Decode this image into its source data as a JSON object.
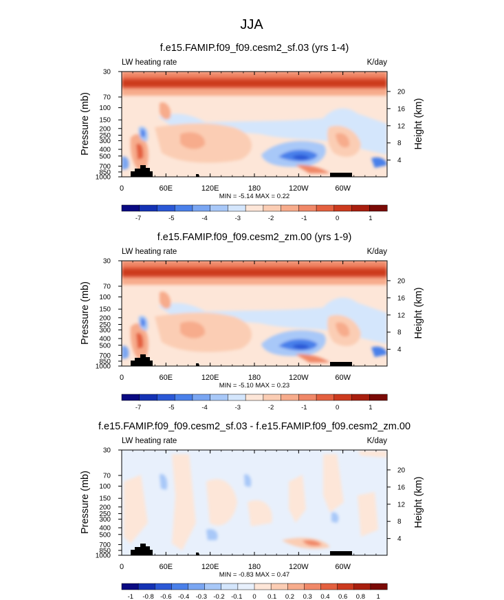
{
  "figure": {
    "title": "JJA"
  },
  "colors": {
    "background": "#ffffff",
    "topography": "#000000"
  },
  "chart_data": [
    {
      "type": "heatmap",
      "title": "f.e15.FAMIP.f09_f09.cesm2_sf.03 (yrs 1-4)",
      "left_string": "LW heating rate",
      "right_string": "K/day",
      "ylabel": "Pressure (mb)",
      "ylabel_right": "Height (km)",
      "x_ticks": [
        "0",
        "60E",
        "120E",
        "180",
        "120W",
        "60W"
      ],
      "x_tick_lon": [
        0,
        60,
        120,
        180,
        240,
        300
      ],
      "xlim": [
        0,
        360
      ],
      "y_ticks": [
        "30",
        "70",
        "100",
        "150",
        "200",
        "250",
        "300",
        "400",
        "500",
        "700",
        "850",
        "1000"
      ],
      "y_tick_values": [
        30,
        70,
        100,
        150,
        200,
        250,
        300,
        400,
        500,
        700,
        850,
        1000
      ],
      "ylim": [
        30,
        1000
      ],
      "height_ticks": [
        "20",
        "16",
        "12",
        "8",
        "4"
      ],
      "height_values": [
        20,
        16,
        12,
        8,
        4
      ],
      "min_max": "MIN =  -5.14  MAX =   0.22",
      "colorbar_labels": [
        "-7",
        "-5",
        "-4",
        "-3",
        "-2",
        "-1",
        "0",
        "1"
      ],
      "colorbar_colors": [
        "#0a0a82",
        "#1432b4",
        "#2b58d6",
        "#4a80ea",
        "#7aa6f2",
        "#a8c8f8",
        "#d4e6fc",
        "#fde6d8",
        "#fbcdb4",
        "#f7ac8c",
        "#f08868",
        "#e4603f",
        "#cc3a1e",
        "#a81e0e",
        "#7a0a06"
      ]
    },
    {
      "type": "heatmap",
      "title": "f.e15.FAMIP.f09_f09.cesm2_zm.00 (yrs 1-9)",
      "left_string": "LW heating rate",
      "right_string": "K/day",
      "ylabel": "Pressure (mb)",
      "ylabel_right": "Height (km)",
      "x_ticks": [
        "0",
        "60E",
        "120E",
        "180",
        "120W",
        "60W"
      ],
      "x_tick_lon": [
        0,
        60,
        120,
        180,
        240,
        300
      ],
      "xlim": [
        0,
        360
      ],
      "y_ticks": [
        "30",
        "70",
        "100",
        "150",
        "200",
        "250",
        "300",
        "400",
        "500",
        "700",
        "850",
        "1000"
      ],
      "y_tick_values": [
        30,
        70,
        100,
        150,
        200,
        250,
        300,
        400,
        500,
        700,
        850,
        1000
      ],
      "ylim": [
        30,
        1000
      ],
      "height_ticks": [
        "20",
        "16",
        "12",
        "8",
        "4"
      ],
      "height_values": [
        20,
        16,
        12,
        8,
        4
      ],
      "min_max": "MIN =  -5.10  MAX =   0.23",
      "colorbar_labels": [
        "-7",
        "-5",
        "-4",
        "-3",
        "-2",
        "-1",
        "0",
        "1"
      ],
      "colorbar_colors": [
        "#0a0a82",
        "#1432b4",
        "#2b58d6",
        "#4a80ea",
        "#7aa6f2",
        "#a8c8f8",
        "#d4e6fc",
        "#fde6d8",
        "#fbcdb4",
        "#f7ac8c",
        "#f08868",
        "#e4603f",
        "#cc3a1e",
        "#a81e0e",
        "#7a0a06"
      ]
    },
    {
      "type": "heatmap",
      "title": "f.e15.FAMIP.f09_f09.cesm2_sf.03 - f.e15.FAMIP.f09_f09.cesm2_zm.00",
      "left_string": "LW heating rate",
      "right_string": "K/day",
      "ylabel": "Pressure (mb)",
      "ylabel_right": "Height (km)",
      "x_ticks": [
        "0",
        "60E",
        "120E",
        "180",
        "120W",
        "60W"
      ],
      "x_tick_lon": [
        0,
        60,
        120,
        180,
        240,
        300
      ],
      "xlim": [
        0,
        360
      ],
      "y_ticks": [
        "30",
        "70",
        "100",
        "150",
        "200",
        "250",
        "300",
        "400",
        "500",
        "700",
        "850",
        "1000"
      ],
      "y_tick_values": [
        30,
        70,
        100,
        150,
        200,
        250,
        300,
        400,
        500,
        700,
        850,
        1000
      ],
      "ylim": [
        30,
        1000
      ],
      "height_ticks": [
        "20",
        "16",
        "12",
        "8",
        "4"
      ],
      "height_values": [
        20,
        16,
        12,
        8,
        4
      ],
      "min_max": "MIN =  -0.83  MAX =   0.47",
      "colorbar_labels": [
        "-1",
        "-0.8",
        "-0.6",
        "-0.4",
        "-0.3",
        "-0.2",
        "-0.1",
        "0",
        "0.1",
        "0.2",
        "0.3",
        "0.4",
        "0.6",
        "0.8",
        "1"
      ],
      "colorbar_colors": [
        "#0a0a82",
        "#1432b4",
        "#2b58d6",
        "#4a80ea",
        "#7aa6f2",
        "#a8c8f8",
        "#d4e6fc",
        "#e8f0fc",
        "#fde6d8",
        "#fbcdb4",
        "#f7ac8c",
        "#f08868",
        "#e4603f",
        "#cc3a1e",
        "#a81e0e",
        "#7a0a06"
      ]
    }
  ]
}
